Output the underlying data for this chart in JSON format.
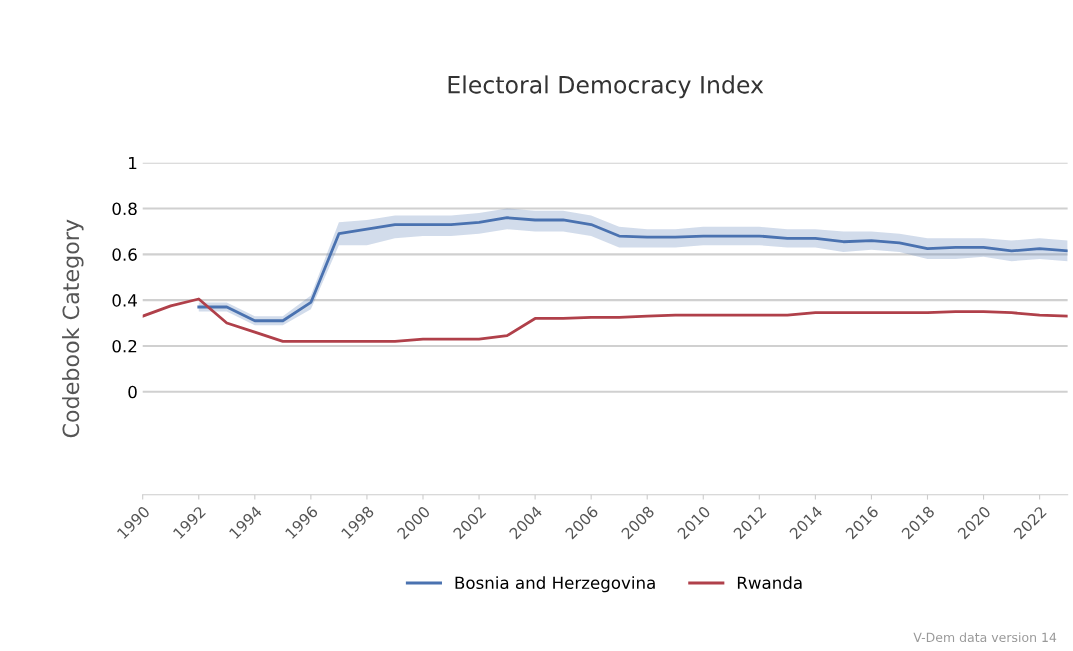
{
  "chart_data": {
    "type": "line",
    "title": "Electoral Democracy Index",
    "ylabel": "Codebook Category",
    "xlim": [
      1990,
      2023
    ],
    "xticks": [
      1990,
      1992,
      1994,
      1996,
      1998,
      2000,
      2002,
      2004,
      2006,
      2008,
      2010,
      2012,
      2014,
      2016,
      2018,
      2020,
      2022
    ],
    "ylim": [
      -0.45,
      1
    ],
    "yticks": [
      0,
      0.2,
      0.4,
      0.6,
      0.8,
      1
    ],
    "grid": "y",
    "legend": "bottom",
    "marker": "none",
    "line_style": "solid",
    "annotations": [
      "V-Dem data version 14"
    ],
    "series": [
      {
        "name": "Bosnia and Herzegovina",
        "color": "#4a72b0",
        "x": [
          1992,
          1993,
          1994,
          1995,
          1996,
          1997,
          1998,
          1999,
          2000,
          2001,
          2002,
          2003,
          2004,
          2005,
          2006,
          2007,
          2008,
          2009,
          2010,
          2011,
          2012,
          2013,
          2014,
          2015,
          2016,
          2017,
          2018,
          2019,
          2020,
          2021,
          2022,
          2023
        ],
        "values": [
          0.37,
          0.37,
          0.31,
          0.31,
          0.39,
          0.69,
          0.71,
          0.73,
          0.73,
          0.73,
          0.74,
          0.76,
          0.75,
          0.75,
          0.73,
          0.68,
          0.675,
          0.675,
          0.68,
          0.68,
          0.68,
          0.67,
          0.67,
          0.655,
          0.66,
          0.65,
          0.625,
          0.63,
          0.63,
          0.615,
          0.625,
          0.615
        ],
        "lower": [
          0.35,
          0.35,
          0.29,
          0.29,
          0.36,
          0.64,
          0.64,
          0.67,
          0.68,
          0.68,
          0.69,
          0.71,
          0.7,
          0.7,
          0.68,
          0.63,
          0.63,
          0.63,
          0.64,
          0.64,
          0.64,
          0.63,
          0.63,
          0.61,
          0.62,
          0.61,
          0.58,
          0.58,
          0.59,
          0.57,
          0.58,
          0.57
        ],
        "upper": [
          0.39,
          0.39,
          0.33,
          0.33,
          0.42,
          0.74,
          0.75,
          0.77,
          0.77,
          0.77,
          0.78,
          0.8,
          0.79,
          0.79,
          0.77,
          0.72,
          0.71,
          0.71,
          0.72,
          0.72,
          0.72,
          0.71,
          0.71,
          0.7,
          0.7,
          0.69,
          0.67,
          0.67,
          0.67,
          0.66,
          0.67,
          0.66
        ]
      },
      {
        "name": "Rwanda",
        "color": "#b0404a",
        "x": [
          1990,
          1991,
          1992,
          1993,
          1994,
          1995,
          1996,
          1997,
          1998,
          1999,
          2000,
          2001,
          2002,
          2003,
          2004,
          2005,
          2006,
          2007,
          2008,
          2009,
          2010,
          2011,
          2012,
          2013,
          2014,
          2015,
          2016,
          2017,
          2018,
          2019,
          2020,
          2021,
          2022,
          2023
        ],
        "values": [
          0.33,
          0.375,
          0.405,
          0.3,
          0.26,
          0.22,
          0.22,
          0.22,
          0.22,
          0.22,
          0.23,
          0.23,
          0.23,
          0.245,
          0.32,
          0.32,
          0.325,
          0.325,
          0.33,
          0.335,
          0.335,
          0.335,
          0.335,
          0.335,
          0.345,
          0.345,
          0.345,
          0.345,
          0.345,
          0.35,
          0.35,
          0.345,
          0.335,
          0.33
        ]
      }
    ]
  }
}
